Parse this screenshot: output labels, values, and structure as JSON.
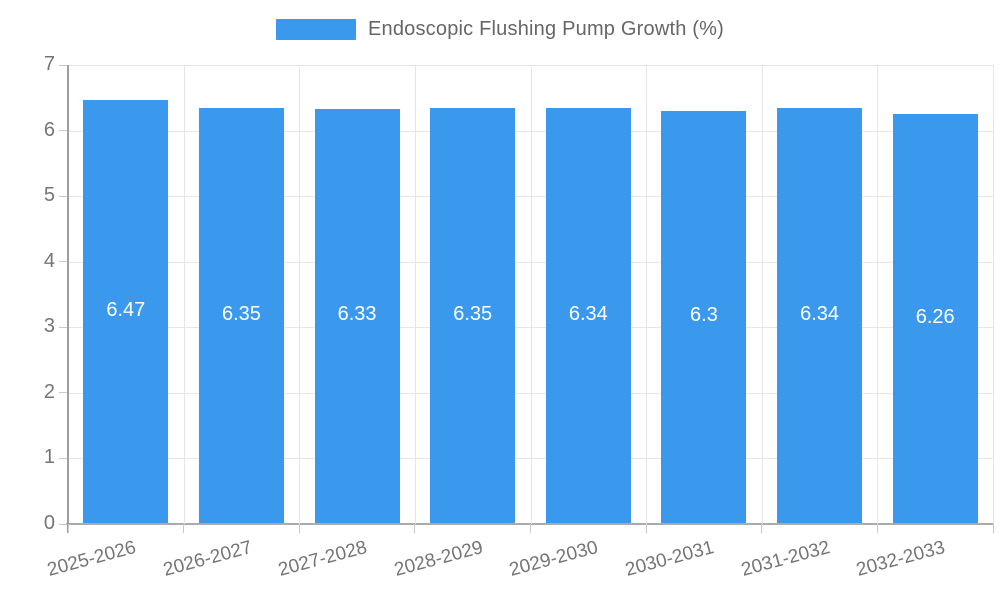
{
  "legend": {
    "label": "Endoscopic Flushing Pump Growth (%)"
  },
  "chart_data": {
    "type": "bar",
    "title": "Endoscopic Flushing Pump Growth (%)",
    "categories": [
      "2025-2026",
      "2026-2027",
      "2027-2028",
      "2028-2029",
      "2029-2030",
      "2030-2031",
      "2031-2032",
      "2032-2033"
    ],
    "values": [
      6.47,
      6.35,
      6.33,
      6.35,
      6.34,
      6.3,
      6.34,
      6.26
    ],
    "value_labels": [
      "6.47",
      "6.35",
      "6.33",
      "6.35",
      "6.34",
      "6.3",
      "6.34",
      "6.26"
    ],
    "xlabel": "",
    "ylabel": "",
    "ylim": [
      0,
      7
    ],
    "yticks": [
      0,
      1,
      2,
      3,
      4,
      5,
      6,
      7
    ],
    "grid": "on",
    "legend_position": "top-center",
    "bar_color": "#3b99ed",
    "value_label_color": "#ffffff",
    "tick_label_color": "#757575",
    "gridline_color": "#e6e6e6",
    "axis_color": "#9e9e9e"
  }
}
